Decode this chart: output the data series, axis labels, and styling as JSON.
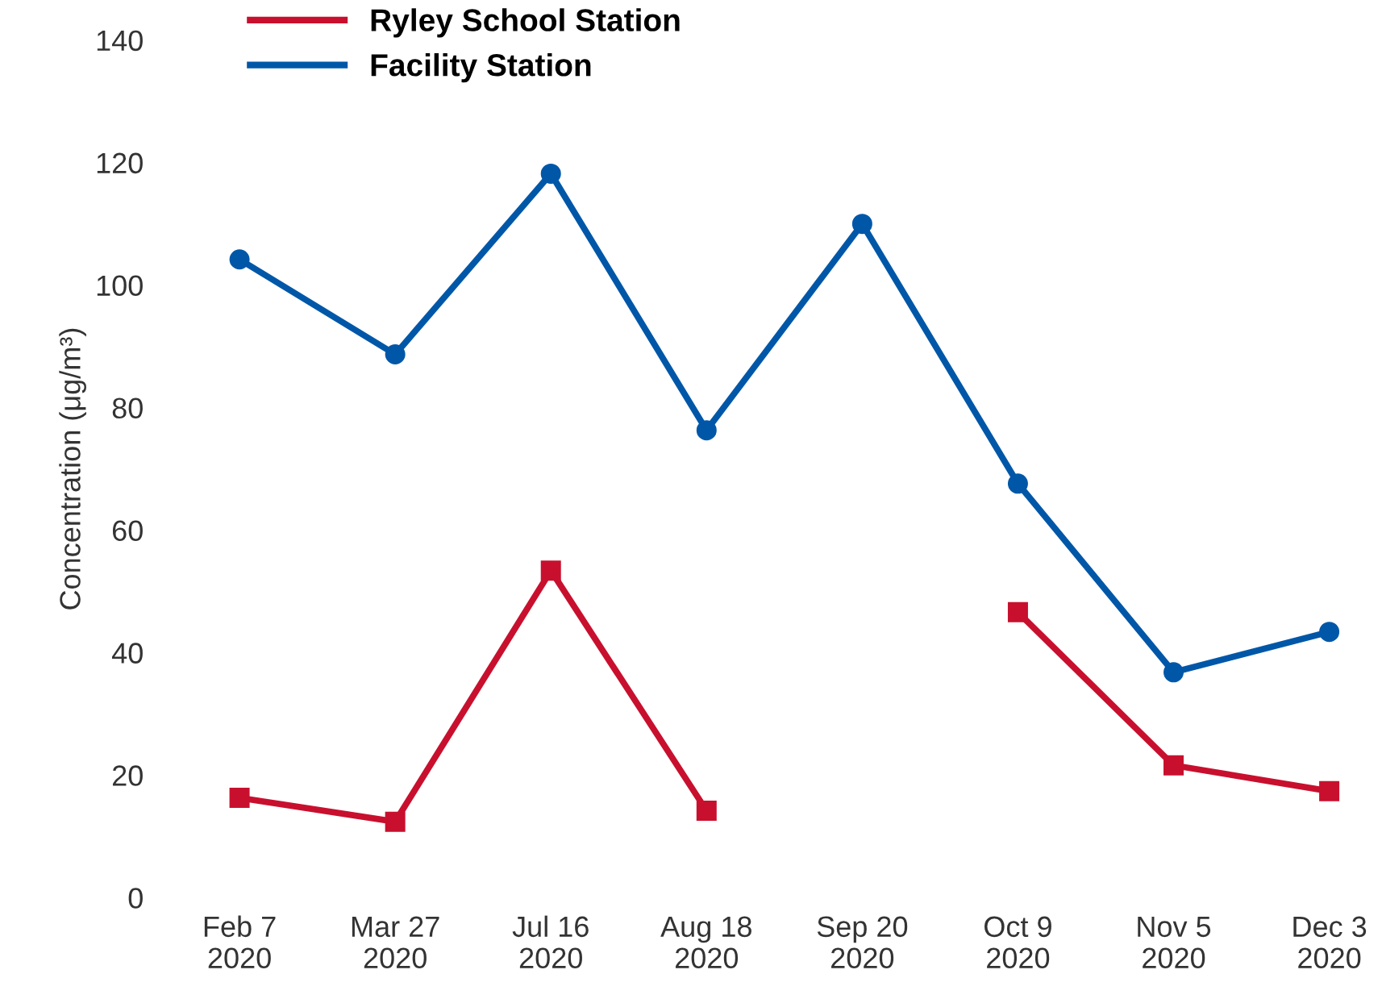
{
  "chart_data": {
    "type": "line",
    "ylabel": "Concentration (μg/m³)",
    "categories": [
      "Feb 7\n2020",
      "Mar 27\n2020",
      "Jul 16\n2020",
      "Aug 18\n2020",
      "Sep 20\n2020",
      "Oct 9\n2020",
      "Nov 5\n2020",
      "Dec 3\n2020"
    ],
    "series": [
      {
        "name": "Ryley School Station",
        "color": "#c8102e",
        "marker": "square",
        "values": [
          16.3,
          12.4,
          53.4,
          14.2,
          null,
          46.6,
          21.6,
          17.4
        ]
      },
      {
        "name": "Facility Station",
        "color": "#0057a8",
        "marker": "circle",
        "values": [
          104.2,
          88.7,
          118.2,
          76.3,
          110.0,
          67.6,
          36.8,
          43.4
        ]
      }
    ],
    "ylim": [
      0,
      140
    ],
    "yticks": [
      0,
      20,
      40,
      60,
      80,
      100,
      120,
      140
    ],
    "grid": false,
    "legend": "top left",
    "line_style": "solid"
  }
}
